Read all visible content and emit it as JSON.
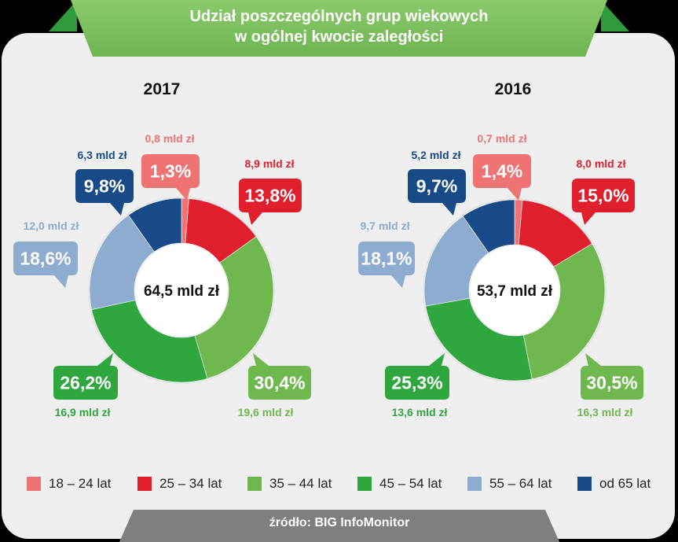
{
  "title": "Udział poszczególnych grup wiekowych\nw ogólnej kwocie zaległości",
  "title_lines": [
    "Udział poszczególnych grup wiekowych",
    "w ogólnej kwocie zaległości"
  ],
  "source": "źródło: BIG InfoMonitor",
  "colors": {
    "18_24": "#ef7373",
    "25_34": "#e01f2d",
    "35_44": "#6fb84f",
    "45_54": "#2fa73e",
    "55_64": "#8eacd0",
    "65_plus": "#174a86",
    "banner": "#7abf5c",
    "card": "#efefef"
  },
  "legend": [
    {
      "label": "18 – 24 lat",
      "color": "#ef7373"
    },
    {
      "label": "25 – 34 lat",
      "color": "#e01f2d"
    },
    {
      "label": "35 – 44 lat",
      "color": "#6fb84f"
    },
    {
      "label": "45 – 54 lat",
      "color": "#2fa73e"
    },
    {
      "label": "55 – 64 lat",
      "color": "#8eacd0"
    },
    {
      "label": "od 65 lat",
      "color": "#174a86"
    }
  ],
  "chart_data": [
    {
      "type": "pie",
      "donut": true,
      "title": "2017",
      "center_label": "64,5 mld zł",
      "categories": [
        "18 – 24 lat",
        "25 – 34 lat",
        "35 – 44 lat",
        "45 – 54 lat",
        "55 – 64 lat",
        "od 65 lat"
      ],
      "values": [
        1.3,
        13.8,
        30.4,
        26.2,
        18.6,
        9.8
      ],
      "value_labels": [
        "1,3%",
        "13,8%",
        "30,4%",
        "26,2%",
        "18,6%",
        "9,8%"
      ],
      "amounts": [
        0.8,
        8.9,
        19.6,
        16.9,
        12.0,
        6.3
      ],
      "amount_labels": [
        "0,8 mld zł",
        "8,9 mld zł",
        "19,6 mld zł",
        "16,9 mld zł",
        "12,0 mld zł",
        "6,3 mld zł"
      ]
    },
    {
      "type": "pie",
      "donut": true,
      "title": "2016",
      "center_label": "53,7 mld zł",
      "categories": [
        "18 – 24 lat",
        "25 – 34 lat",
        "35 – 44 lat",
        "45 – 54 lat",
        "55 – 64 lat",
        "od 65 lat"
      ],
      "values": [
        1.4,
        15.0,
        30.5,
        25.3,
        18.1,
        9.7
      ],
      "value_labels": [
        "1,4%",
        "15,0%",
        "30,5%",
        "25,3%",
        "18,1%",
        "9,7%"
      ],
      "amounts": [
        0.7,
        8.0,
        16.3,
        13.6,
        9.7,
        5.2
      ],
      "amount_labels": [
        "0,7 mld zł",
        "8,0 mld zł",
        "16,3 mld zł",
        "13,6 mld zł",
        "9,7 mld zł",
        "5,2 mld zł"
      ]
    }
  ]
}
